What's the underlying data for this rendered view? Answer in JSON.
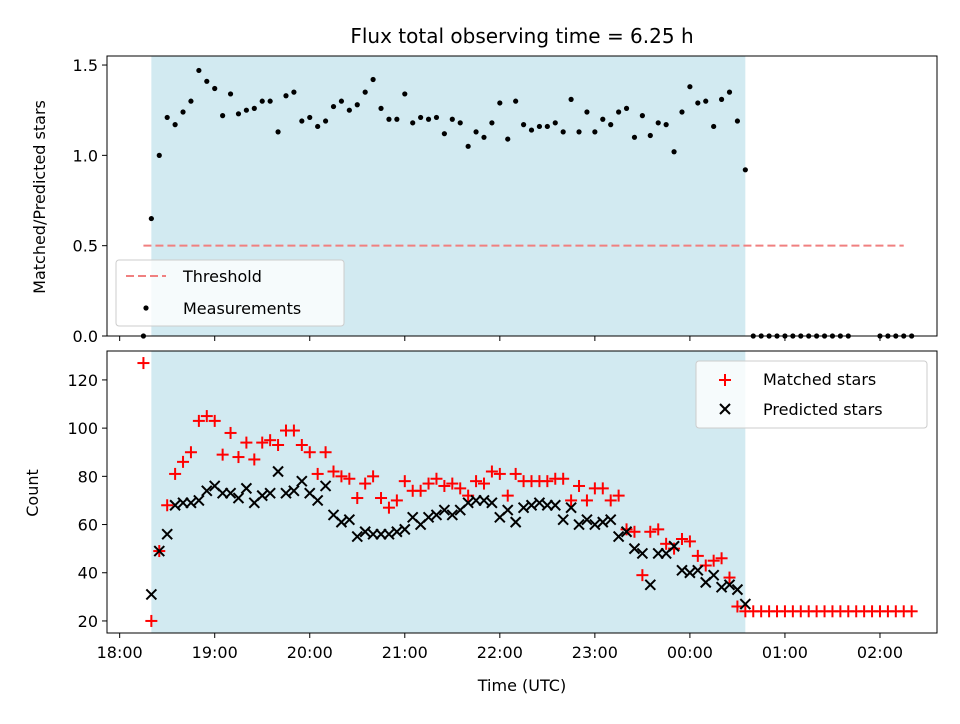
{
  "chart_data": [
    {
      "type": "scatter",
      "title": "Flux total observing time = 6.25 h",
      "ylabel": "Matched/Predicted stars",
      "xlabel": "",
      "ylim": [
        0,
        1.55
      ],
      "xlim": [
        "17:52",
        "02:36"
      ],
      "yticks": [
        "0.0",
        "0.5",
        "1.0",
        "1.5"
      ],
      "yticks_values": [
        0,
        0.5,
        1.0,
        1.5
      ],
      "shaded_span": [
        "18:20",
        "00:35"
      ],
      "shade_color": "#add8e6",
      "threshold": {
        "name": "Threshold",
        "value": 0.5,
        "x_range": [
          "18:15",
          "02:15"
        ],
        "color": "#f08080"
      },
      "legend": {
        "position": "lower-left",
        "entries": [
          "Threshold",
          "Measurements"
        ]
      },
      "series": [
        {
          "name": "Measurements",
          "color": "#000000",
          "x": [
            "18:15",
            "18:20",
            "18:25",
            "18:30",
            "18:35",
            "18:40",
            "18:45",
            "18:50",
            "18:55",
            "19:00",
            "19:05",
            "19:10",
            "19:15",
            "19:20",
            "19:25",
            "19:30",
            "19:35",
            "19:40",
            "19:45",
            "19:50",
            "19:55",
            "20:00",
            "20:05",
            "20:10",
            "20:15",
            "20:20",
            "20:25",
            "20:30",
            "20:35",
            "20:40",
            "20:45",
            "20:50",
            "20:55",
            "21:00",
            "21:05",
            "21:10",
            "21:15",
            "21:20",
            "21:25",
            "21:30",
            "21:35",
            "21:40",
            "21:45",
            "21:50",
            "21:55",
            "22:00",
            "22:05",
            "22:10",
            "22:15",
            "22:20",
            "22:25",
            "22:30",
            "22:35",
            "22:40",
            "22:45",
            "22:50",
            "22:55",
            "23:00",
            "23:05",
            "23:10",
            "23:15",
            "23:20",
            "23:25",
            "23:30",
            "23:35",
            "23:40",
            "23:45",
            "23:50",
            "23:55",
            "00:00",
            "00:05",
            "00:10",
            "00:15",
            "00:20",
            "00:25",
            "00:30",
            "00:35",
            "00:40",
            "00:45",
            "00:50",
            "00:55",
            "01:00",
            "01:05",
            "01:10",
            "01:15",
            "01:20",
            "01:25",
            "01:30",
            "01:35",
            "01:40",
            "02:00",
            "02:05",
            "02:10",
            "02:15",
            "02:20"
          ],
          "y": [
            0.0,
            0.65,
            1.0,
            1.21,
            1.17,
            1.24,
            1.3,
            1.47,
            1.41,
            1.37,
            1.22,
            1.34,
            1.23,
            1.25,
            1.26,
            1.3,
            1.3,
            1.13,
            1.33,
            1.35,
            1.19,
            1.21,
            1.16,
            1.19,
            1.27,
            1.3,
            1.25,
            1.28,
            1.35,
            1.42,
            1.26,
            1.2,
            1.2,
            1.34,
            1.18,
            1.21,
            1.2,
            1.21,
            1.12,
            1.2,
            1.18,
            1.05,
            1.13,
            1.1,
            1.18,
            1.29,
            1.09,
            1.3,
            1.17,
            1.14,
            1.16,
            1.16,
            1.18,
            1.13,
            1.31,
            1.13,
            1.24,
            1.13,
            1.2,
            1.17,
            1.24,
            1.26,
            1.1,
            1.22,
            1.11,
            1.18,
            1.17,
            1.02,
            1.24,
            1.38,
            1.29,
            1.3,
            1.16,
            1.31,
            1.35,
            1.19,
            0.92,
            0.0,
            0.0,
            0.0,
            0.0,
            0.0,
            0.0,
            0.0,
            0.0,
            0.0,
            0.0,
            0.0,
            0.0,
            0.0,
            0.0,
            0.0,
            0.0,
            0.0,
            0.0
          ]
        }
      ]
    },
    {
      "type": "scatter",
      "title": "",
      "ylabel": "Count",
      "xlabel": "Time (UTC)",
      "ylim": [
        15,
        132
      ],
      "xlim": [
        "17:52",
        "02:36"
      ],
      "yticks": [
        "20",
        "40",
        "60",
        "80",
        "100",
        "120"
      ],
      "yticks_values": [
        20,
        40,
        60,
        80,
        100,
        120
      ],
      "xticks": [
        "18:00",
        "19:00",
        "20:00",
        "21:00",
        "22:00",
        "23:00",
        "00:00",
        "01:00",
        "02:00"
      ],
      "shaded_span": [
        "18:20",
        "00:35"
      ],
      "shade_color": "#add8e6",
      "legend": {
        "position": "upper-right",
        "entries": [
          "Matched stars",
          "Predicted stars"
        ]
      },
      "series": [
        {
          "name": "Matched stars",
          "marker": "plus",
          "color": "#ff0000",
          "x": [
            "18:15",
            "18:20",
            "18:25",
            "18:30",
            "18:35",
            "18:40",
            "18:45",
            "18:50",
            "18:55",
            "19:00",
            "19:05",
            "19:10",
            "19:15",
            "19:20",
            "19:25",
            "19:30",
            "19:35",
            "19:40",
            "19:45",
            "19:50",
            "19:55",
            "20:00",
            "20:05",
            "20:10",
            "20:15",
            "20:20",
            "20:25",
            "20:30",
            "20:35",
            "20:40",
            "20:45",
            "20:50",
            "20:55",
            "21:00",
            "21:05",
            "21:10",
            "21:15",
            "21:20",
            "21:25",
            "21:30",
            "21:35",
            "21:40",
            "21:45",
            "21:50",
            "21:55",
            "22:00",
            "22:05",
            "22:10",
            "22:15",
            "22:20",
            "22:25",
            "22:30",
            "22:35",
            "22:40",
            "22:45",
            "22:50",
            "22:55",
            "23:00",
            "23:05",
            "23:10",
            "23:15",
            "23:20",
            "23:25",
            "23:30",
            "23:35",
            "23:40",
            "23:45",
            "23:50",
            "23:55",
            "00:00",
            "00:05",
            "00:10",
            "00:15",
            "00:20",
            "00:25",
            "00:30",
            "00:35",
            "00:40",
            "00:45",
            "00:50",
            "00:55",
            "01:00",
            "01:05",
            "01:10",
            "01:15",
            "01:20",
            "01:25",
            "01:30",
            "01:35",
            "01:40",
            "01:45",
            "01:50",
            "01:55",
            "02:00",
            "02:05",
            "02:10",
            "02:15",
            "02:20"
          ],
          "y": [
            127,
            20,
            49,
            68,
            81,
            86,
            90,
            103,
            105,
            103,
            89,
            98,
            88,
            94,
            87,
            94,
            95,
            93,
            99,
            99,
            93,
            90,
            81,
            90,
            82,
            80,
            79,
            71,
            77,
            80,
            71,
            67,
            70,
            78,
            74,
            74,
            77,
            79,
            76,
            77,
            75,
            72,
            78,
            77,
            82,
            81,
            72,
            81,
            78,
            78,
            78,
            78,
            79,
            79,
            70,
            76,
            70,
            75,
            75,
            70,
            72,
            58,
            57,
            39,
            57,
            58,
            52,
            50,
            54,
            53,
            47,
            43,
            45,
            46,
            38,
            26,
            24,
            24,
            24,
            24,
            24,
            24,
            24,
            24,
            24,
            24,
            24,
            24,
            24,
            24,
            24,
            24,
            24,
            24,
            24,
            24,
            24,
            24
          ]
        },
        {
          "name": "Predicted stars",
          "marker": "x",
          "color": "#000000",
          "x": [
            "18:20",
            "18:25",
            "18:30",
            "18:35",
            "18:40",
            "18:45",
            "18:50",
            "18:55",
            "19:00",
            "19:05",
            "19:10",
            "19:15",
            "19:20",
            "19:25",
            "19:30",
            "19:35",
            "19:40",
            "19:45",
            "19:50",
            "19:55",
            "20:00",
            "20:05",
            "20:10",
            "20:15",
            "20:20",
            "20:25",
            "20:30",
            "20:35",
            "20:40",
            "20:45",
            "20:50",
            "20:55",
            "21:00",
            "21:05",
            "21:10",
            "21:15",
            "21:20",
            "21:25",
            "21:30",
            "21:35",
            "21:40",
            "21:45",
            "21:50",
            "21:55",
            "22:00",
            "22:05",
            "22:10",
            "22:15",
            "22:20",
            "22:25",
            "22:30",
            "22:35",
            "22:40",
            "22:45",
            "22:50",
            "22:55",
            "23:00",
            "23:05",
            "23:10",
            "23:15",
            "23:20",
            "23:25",
            "23:30",
            "23:35",
            "23:40",
            "23:45",
            "23:50",
            "23:55",
            "00:00",
            "00:05",
            "00:10",
            "00:15",
            "00:20",
            "00:25",
            "00:30",
            "00:35"
          ],
          "y": [
            31,
            49,
            56,
            68,
            69,
            69,
            70,
            74,
            76,
            73,
            73,
            71,
            75,
            69,
            72,
            73,
            82,
            73,
            74,
            78,
            73,
            70,
            76,
            64,
            61,
            62,
            55,
            57,
            56,
            56,
            56,
            57,
            58,
            63,
            60,
            63,
            64,
            66,
            64,
            66,
            69,
            70,
            70,
            69,
            63,
            66,
            61,
            67,
            68,
            69,
            68,
            68,
            62,
            67,
            60,
            62,
            60,
            61,
            62,
            55,
            57,
            50,
            48,
            35,
            48,
            48,
            51,
            41,
            40,
            41,
            36,
            39,
            34,
            35,
            33,
            27
          ]
        }
      ]
    }
  ]
}
